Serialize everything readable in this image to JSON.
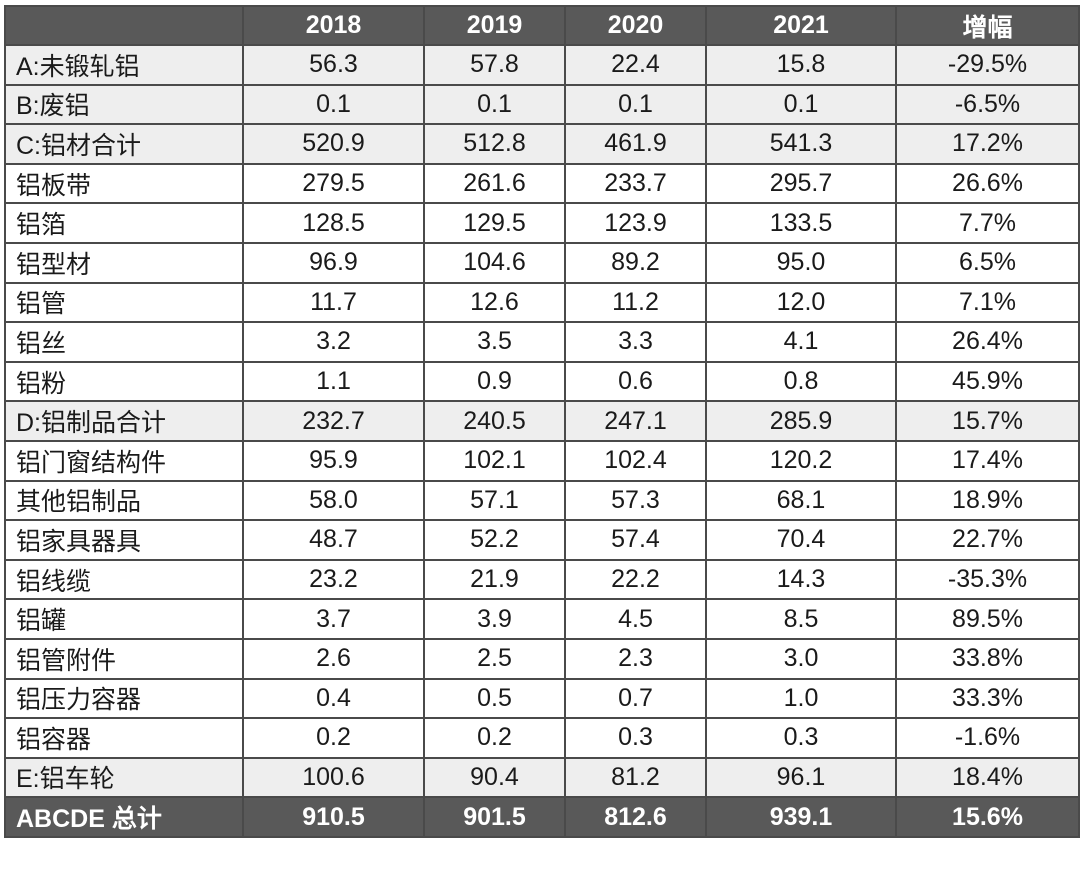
{
  "table": {
    "header": [
      "",
      "2018",
      "2019",
      "2020",
      "2021",
      "增幅"
    ],
    "rows": [
      {
        "label": "A:未锻轧铝",
        "v": [
          "56.3",
          "57.8",
          "22.4",
          "15.8",
          "-29.5%"
        ],
        "shaded": true
      },
      {
        "label": "B:废铝",
        "v": [
          "0.1",
          "0.1",
          "0.1",
          "0.1",
          "-6.5%"
        ],
        "shaded": true
      },
      {
        "label": "C:铝材合计",
        "v": [
          "520.9",
          "512.8",
          "461.9",
          "541.3",
          "17.2%"
        ],
        "shaded": true
      },
      {
        "label": "铝板带",
        "v": [
          "279.5",
          "261.6",
          "233.7",
          "295.7",
          "26.6%"
        ],
        "shaded": false
      },
      {
        "label": "铝箔",
        "v": [
          "128.5",
          "129.5",
          "123.9",
          "133.5",
          "7.7%"
        ],
        "shaded": false
      },
      {
        "label": "铝型材",
        "v": [
          "96.9",
          "104.6",
          "89.2",
          "95.0",
          "6.5%"
        ],
        "shaded": false
      },
      {
        "label": "铝管",
        "v": [
          "11.7",
          "12.6",
          "11.2",
          "12.0",
          "7.1%"
        ],
        "shaded": false
      },
      {
        "label": "铝丝",
        "v": [
          "3.2",
          "3.5",
          "3.3",
          "4.1",
          "26.4%"
        ],
        "shaded": false
      },
      {
        "label": "铝粉",
        "v": [
          "1.1",
          "0.9",
          "0.6",
          "0.8",
          "45.9%"
        ],
        "shaded": false
      },
      {
        "label": "D:铝制品合计",
        "v": [
          "232.7",
          "240.5",
          "247.1",
          "285.9",
          "15.7%"
        ],
        "shaded": true
      },
      {
        "label": "铝门窗结构件",
        "v": [
          "95.9",
          "102.1",
          "102.4",
          "120.2",
          "17.4%"
        ],
        "shaded": false
      },
      {
        "label": "其他铝制品",
        "v": [
          "58.0",
          "57.1",
          "57.3",
          "68.1",
          "18.9%"
        ],
        "shaded": false
      },
      {
        "label": "铝家具器具",
        "v": [
          "48.7",
          "52.2",
          "57.4",
          "70.4",
          "22.7%"
        ],
        "shaded": false
      },
      {
        "label": "铝线缆",
        "v": [
          "23.2",
          "21.9",
          "22.2",
          "14.3",
          "-35.3%"
        ],
        "shaded": false
      },
      {
        "label": "铝罐",
        "v": [
          "3.7",
          "3.9",
          "4.5",
          "8.5",
          "89.5%"
        ],
        "shaded": false
      },
      {
        "label": "铝管附件",
        "v": [
          "2.6",
          "2.5",
          "2.3",
          "3.0",
          "33.8%"
        ],
        "shaded": false
      },
      {
        "label": "铝压力容器",
        "v": [
          "0.4",
          "0.5",
          "0.7",
          "1.0",
          "33.3%"
        ],
        "shaded": false
      },
      {
        "label": "铝容器",
        "v": [
          "0.2",
          "0.2",
          "0.3",
          "0.3",
          "-1.6%"
        ],
        "shaded": false
      },
      {
        "label": "E:铝车轮",
        "v": [
          "100.6",
          "90.4",
          "81.2",
          "96.1",
          "18.4%"
        ],
        "shaded": true
      }
    ],
    "total": {
      "label": "ABCDE 总计",
      "v": [
        "910.5",
        "901.5",
        "812.6",
        "939.1",
        "15.6%"
      ]
    }
  },
  "colors": {
    "header_bg": "#595959",
    "header_text": "#ffffff",
    "shaded_row_bg": "#eeeeee",
    "border": "#4a4a4a"
  }
}
